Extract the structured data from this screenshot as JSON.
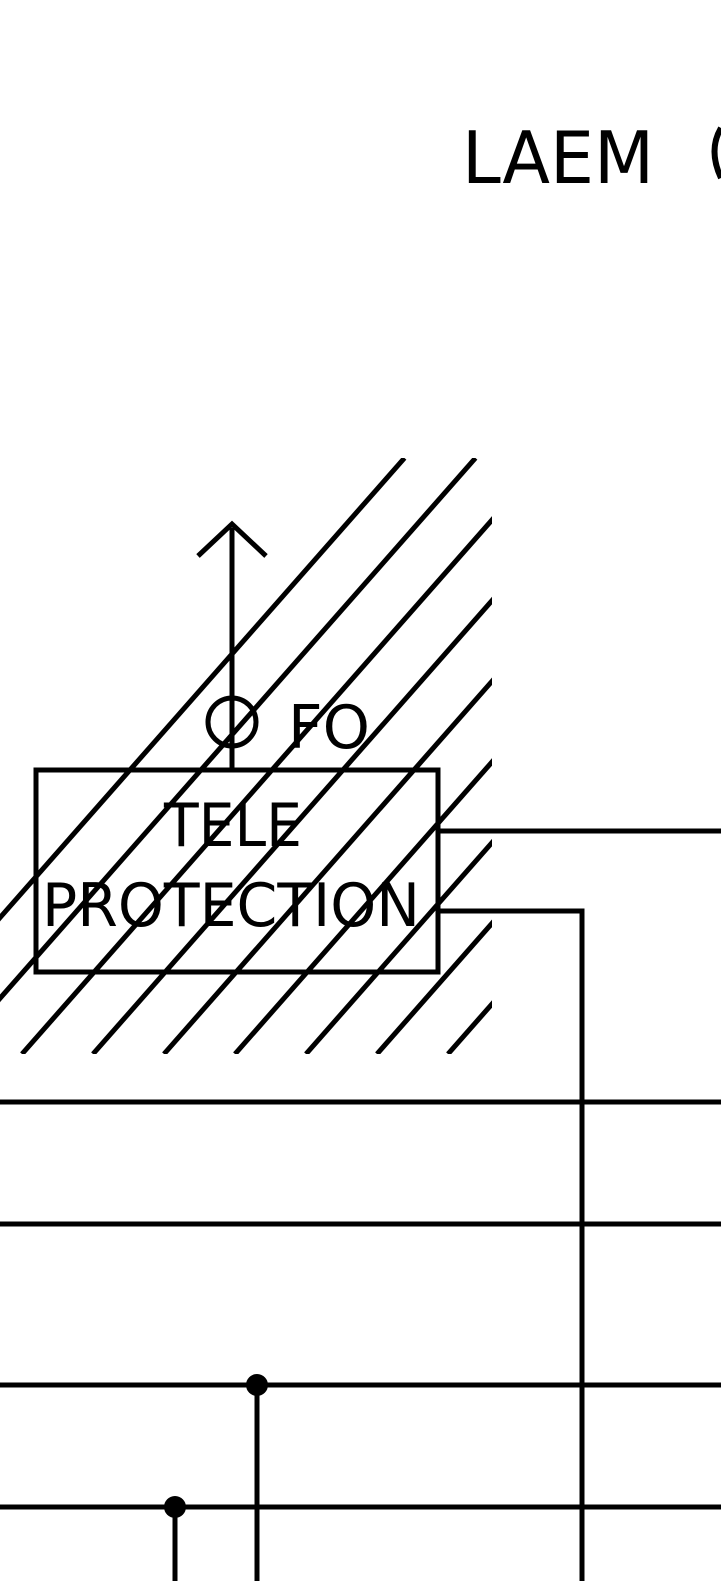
{
  "diagram": {
    "title": "LAEM",
    "fiber_label": "FO",
    "box_label_line1": "TELE",
    "box_label_line2": "PROTECTION"
  },
  "colors": {
    "stroke": "#000000",
    "background": "#ffffff"
  }
}
